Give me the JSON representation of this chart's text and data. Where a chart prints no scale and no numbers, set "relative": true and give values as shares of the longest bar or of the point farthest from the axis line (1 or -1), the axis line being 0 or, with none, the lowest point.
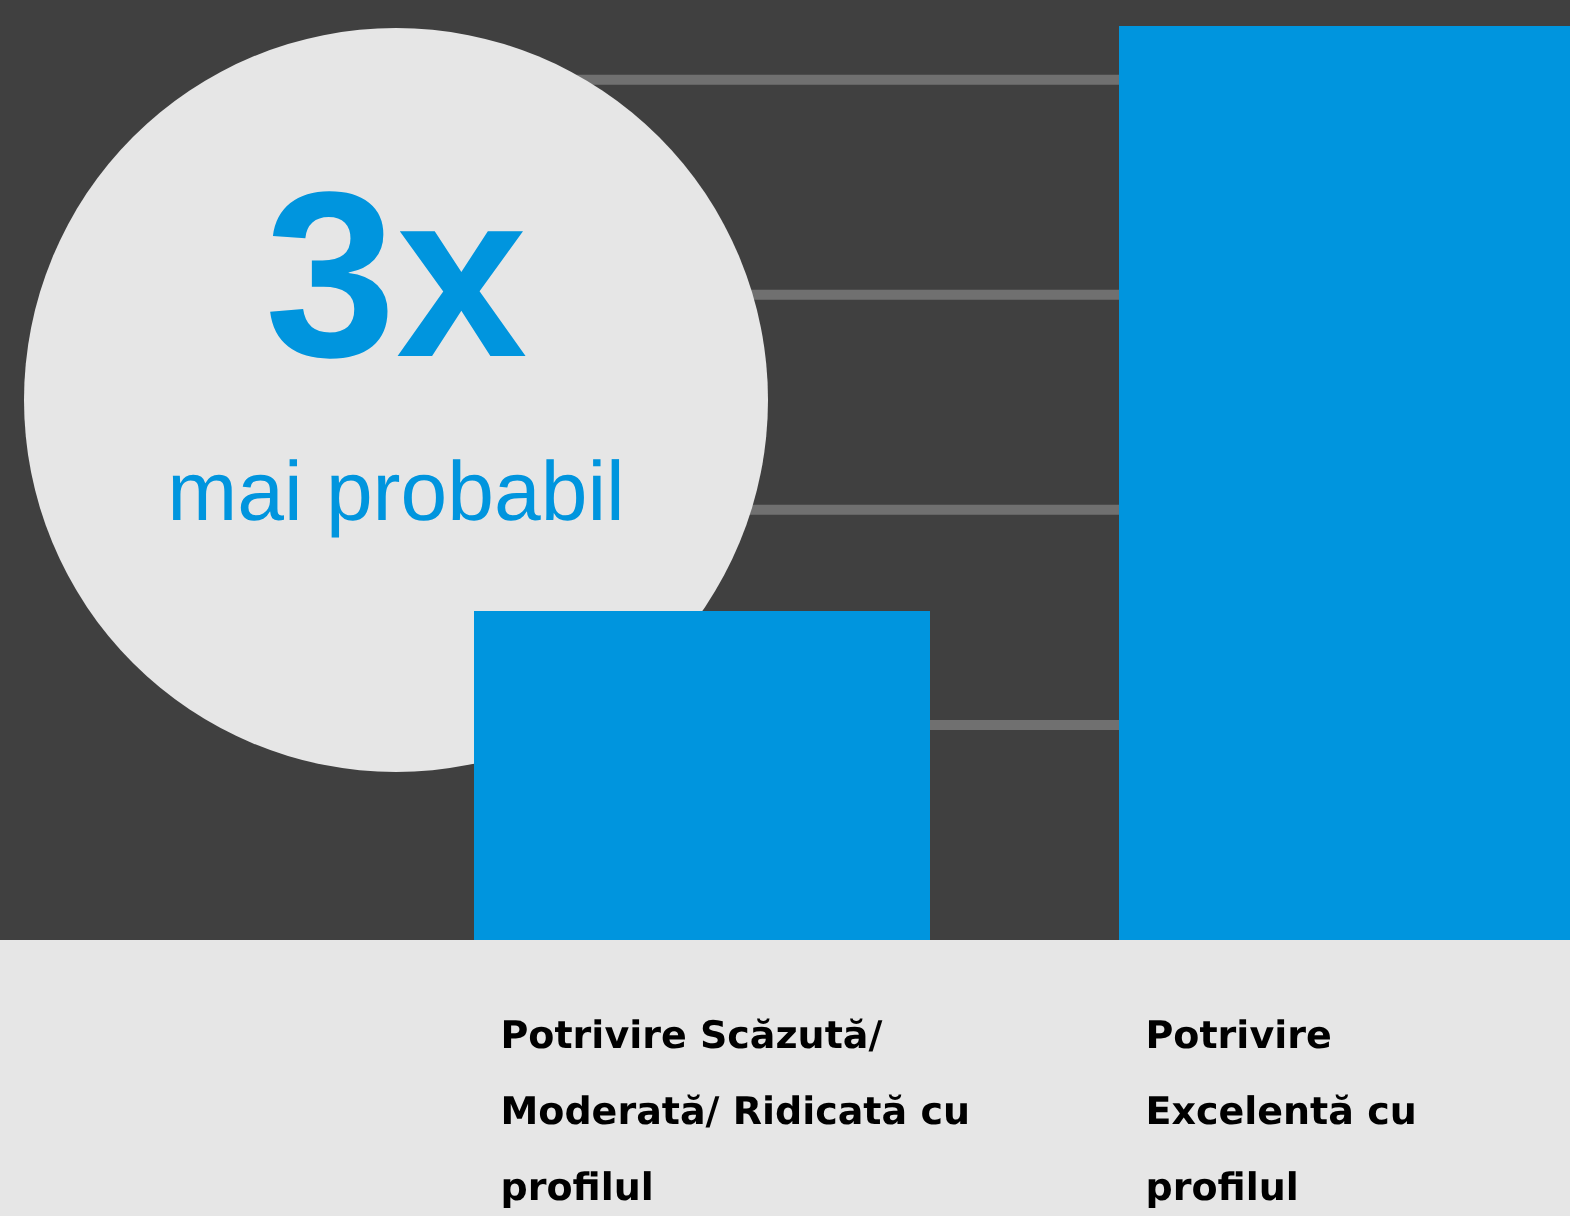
{
  "chart_data": {
    "type": "bar",
    "categories": [
      "Potrivire Scăzută/ Moderată/ Ridicată cu profilul",
      "Potrivire Excelentă cu profilul"
    ],
    "values": [
      0.36,
      1
    ],
    "color": "#0095de",
    "relative": true,
    "grid": "y",
    "annotations": [
      "3x",
      "mai probabil"
    ]
  }
}
